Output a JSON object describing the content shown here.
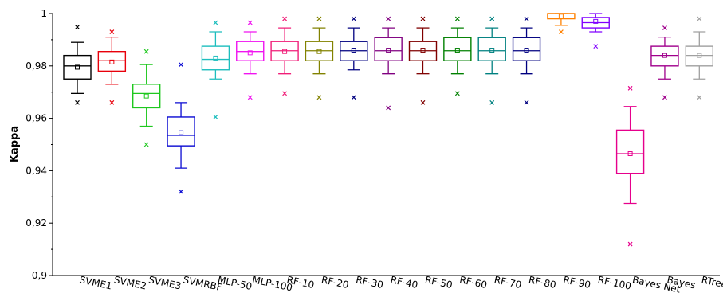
{
  "chart_data": {
    "type": "box",
    "ylabel": "Kappa",
    "ylim": [
      0.9,
      1.0
    ],
    "yticks": [
      "0,9",
      "0,92",
      "0,94",
      "0,96",
      "0,98",
      "1"
    ],
    "yticks_values": [
      0.9,
      0.92,
      0.94,
      0.96,
      0.98,
      1.0
    ],
    "categories": [
      "SVME1",
      "SVME2",
      "SVME3",
      "SVMRBF",
      "MLP-50",
      "MLP-100",
      "RF-10",
      "RF-20",
      "RF-30",
      "RF-40",
      "RF-50",
      "RF-60",
      "RF-70",
      "RF-80",
      "RF-90",
      "RF-100",
      "Bayes Net",
      "Bayes",
      "RTree"
    ],
    "boxes": [
      {
        "name": "SVME1",
        "color": "#000000",
        "whisker_low": 0.9695,
        "q1": 0.975,
        "median": 0.98,
        "q3": 0.984,
        "whisker_high": 0.989,
        "mean": 0.9795,
        "outlier_low": 0.966,
        "outlier_high": 0.9948
      },
      {
        "name": "SVME2",
        "color": "#e8000b",
        "whisker_low": 0.973,
        "q1": 0.978,
        "median": 0.982,
        "q3": 0.9855,
        "whisker_high": 0.991,
        "mean": 0.9815,
        "outlier_low": 0.966,
        "outlier_high": 0.993
      },
      {
        "name": "SVME3",
        "color": "#1ec81e",
        "whisker_low": 0.957,
        "q1": 0.964,
        "median": 0.9695,
        "q3": 0.973,
        "whisker_high": 0.9805,
        "mean": 0.9685,
        "outlier_low": 0.95,
        "outlier_high": 0.9855
      },
      {
        "name": "SVMRBF",
        "color": "#0a0ad2",
        "whisker_low": 0.941,
        "q1": 0.9495,
        "median": 0.9535,
        "q3": 0.9605,
        "whisker_high": 0.966,
        "mean": 0.9545,
        "outlier_low": 0.932,
        "outlier_high": 0.9805
      },
      {
        "name": "MLP-50",
        "color": "#1ebebe",
        "whisker_low": 0.975,
        "q1": 0.9785,
        "median": 0.9825,
        "q3": 0.9875,
        "whisker_high": 0.993,
        "mean": 0.983,
        "outlier_low": 0.9605,
        "outlier_high": 0.9965
      },
      {
        "name": "MLP-100",
        "color": "#f014f0",
        "whisker_low": 0.977,
        "q1": 0.982,
        "median": 0.9855,
        "q3": 0.9893,
        "whisker_high": 0.993,
        "mean": 0.985,
        "outlier_low": 0.968,
        "outlier_high": 0.9965
      },
      {
        "name": "RF-10",
        "color": "#f01e78",
        "whisker_low": 0.977,
        "q1": 0.982,
        "median": 0.9858,
        "q3": 0.9893,
        "whisker_high": 0.9945,
        "mean": 0.9855,
        "outlier_low": 0.9695,
        "outlier_high": 0.998
      },
      {
        "name": "RF-20",
        "color": "#828200",
        "whisker_low": 0.977,
        "q1": 0.982,
        "median": 0.9858,
        "q3": 0.9893,
        "whisker_high": 0.9945,
        "mean": 0.9855,
        "outlier_low": 0.968,
        "outlier_high": 0.998
      },
      {
        "name": "RF-30",
        "color": "#000080",
        "whisker_low": 0.9785,
        "q1": 0.982,
        "median": 0.9858,
        "q3": 0.9893,
        "whisker_high": 0.9945,
        "mean": 0.986,
        "outlier_low": 0.968,
        "outlier_high": 0.998
      },
      {
        "name": "RF-40",
        "color": "#800080",
        "whisker_low": 0.977,
        "q1": 0.982,
        "median": 0.9858,
        "q3": 0.9908,
        "whisker_high": 0.9945,
        "mean": 0.986,
        "outlier_low": 0.964,
        "outlier_high": 0.998
      },
      {
        "name": "RF-50",
        "color": "#800000",
        "whisker_low": 0.977,
        "q1": 0.982,
        "median": 0.9858,
        "q3": 0.9893,
        "whisker_high": 0.9945,
        "mean": 0.986,
        "outlier_low": 0.966,
        "outlier_high": 0.998
      },
      {
        "name": "RF-60",
        "color": "#008000",
        "whisker_low": 0.977,
        "q1": 0.982,
        "median": 0.9858,
        "q3": 0.9908,
        "whisker_high": 0.9945,
        "mean": 0.986,
        "outlier_low": 0.9695,
        "outlier_high": 0.998
      },
      {
        "name": "RF-70",
        "color": "#008080",
        "whisker_low": 0.977,
        "q1": 0.982,
        "median": 0.9858,
        "q3": 0.9908,
        "whisker_high": 0.9945,
        "mean": 0.986,
        "outlier_low": 0.966,
        "outlier_high": 0.998
      },
      {
        "name": "RF-80",
        "color": "#000080",
        "whisker_low": 0.977,
        "q1": 0.982,
        "median": 0.9858,
        "q3": 0.9908,
        "whisker_high": 0.9945,
        "mean": 0.986,
        "outlier_low": 0.966,
        "outlier_high": 0.998
      },
      {
        "name": "RF-90",
        "color": "#ff8000",
        "whisker_low": 0.9955,
        "q1": 0.998,
        "median": 1.0,
        "q3": 1.0,
        "whisker_high": 1.0,
        "mean": 0.999,
        "outlier_low": 0.993,
        "outlier_high": null
      },
      {
        "name": "RF-100",
        "color": "#8000ff",
        "whisker_low": 0.993,
        "q1": 0.9945,
        "median": 0.9965,
        "q3": 0.9985,
        "whisker_high": 1.0,
        "mean": 0.997,
        "outlier_low": 0.9875,
        "outlier_high": null
      },
      {
        "name": "Bayes Net",
        "color": "#e6008c",
        "whisker_low": 0.9275,
        "q1": 0.939,
        "median": 0.9465,
        "q3": 0.9555,
        "whisker_high": 0.9645,
        "mean": 0.9465,
        "outlier_low": 0.912,
        "outlier_high": 0.9715
      },
      {
        "name": "Bayes",
        "color": "#a0008c",
        "whisker_low": 0.975,
        "q1": 0.98,
        "median": 0.984,
        "q3": 0.9875,
        "whisker_high": 0.991,
        "mean": 0.984,
        "outlier_low": 0.968,
        "outlier_high": 0.9945
      },
      {
        "name": "RTree",
        "color": "#a0a0a0",
        "whisker_low": 0.975,
        "q1": 0.98,
        "median": 0.984,
        "q3": 0.9875,
        "whisker_high": 0.993,
        "mean": 0.984,
        "outlier_low": 0.968,
        "outlier_high": 0.998
      }
    ]
  }
}
